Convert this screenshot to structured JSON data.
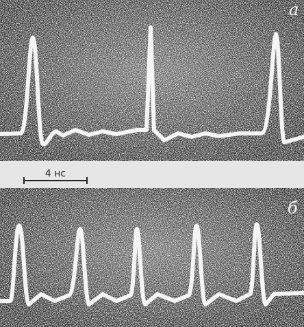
{
  "panels": [
    {
      "label": "а"
    },
    {
      "label": "б"
    }
  ],
  "scale_bar": {
    "label": "4 нс"
  }
}
